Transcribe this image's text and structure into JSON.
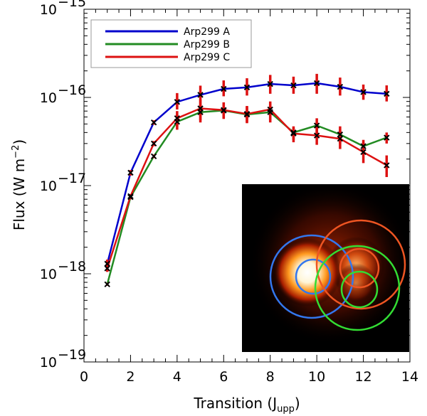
{
  "chart_data": {
    "type": "line",
    "title": "",
    "xlabel": "Transition (J",
    "xlabel_sub": "upp",
    "xlabel_close": ")",
    "ylabel": "Flux (W m",
    "ylabel_sup": "−2",
    "ylabel_close": ")",
    "xlim": [
      0,
      14
    ],
    "ylim": [
      1e-19,
      1e-15
    ],
    "yscale": "log",
    "legend_position": "top-left",
    "x_ticks": [
      0,
      2,
      4,
      6,
      8,
      10,
      12,
      14
    ],
    "y_ticks": [
      {
        "value": 1e-19,
        "base": "10",
        "exp": "−19"
      },
      {
        "value": 1e-18,
        "base": "10",
        "exp": "−18"
      },
      {
        "value": 1e-17,
        "base": "10",
        "exp": "−17"
      },
      {
        "value": 1e-16,
        "base": "10",
        "exp": "−16"
      },
      {
        "value": 1e-15,
        "base": "10",
        "exp": "−15"
      }
    ],
    "x": [
      1,
      2,
      3,
      4,
      5,
      6,
      7,
      8,
      9,
      10,
      11,
      12,
      13
    ],
    "series": [
      {
        "name": "Arp299 A",
        "color": "#0000cc",
        "values": [
          1.3e-18,
          1.4e-17,
          5.2e-17,
          8.9e-17,
          1.07e-16,
          1.25e-16,
          1.3e-16,
          1.42e-16,
          1.37e-16,
          1.45e-16,
          1.32e-16,
          1.15e-16,
          1.1e-16
        ],
        "err_low": [
          1.1e-18,
          1.3e-17,
          4.9e-17,
          7.3e-17,
          8.8e-17,
          1.03e-16,
          1.05e-16,
          1.1e-16,
          1.1e-16,
          1.1e-16,
          1.05e-16,
          9.4e-17,
          9e-17
        ],
        "err_high": [
          1.45e-18,
          1.5e-17,
          5.5e-17,
          1.12e-16,
          1.36e-16,
          1.56e-16,
          1.65e-16,
          1.8e-16,
          1.72e-16,
          1.85e-16,
          1.68e-16,
          1.4e-16,
          1.37e-16
        ]
      },
      {
        "name": "Arp299 B",
        "color": "#228b22",
        "values": [
          7.6e-19,
          7.4e-18,
          2.15e-17,
          5.3e-17,
          6.8e-17,
          7.1e-17,
          6.4e-17,
          6.8e-17,
          4e-17,
          4.8e-17,
          3.8e-17,
          2.8e-17,
          3.5e-17
        ],
        "err_low": [
          7.3e-19,
          7e-18,
          2.05e-17,
          4.3e-17,
          5.2e-17,
          5.7e-17,
          5.1e-17,
          5.2e-17,
          3.3e-17,
          3.8e-17,
          3e-17,
          2.3e-17,
          3e-17
        ],
        "err_high": [
          7.9e-19,
          7.8e-18,
          2.25e-17,
          6.4e-17,
          8.8e-17,
          8.7e-17,
          7.9e-17,
          8.5e-17,
          4.5e-17,
          5.8e-17,
          4.7e-17,
          3.3e-17,
          4e-17
        ]
      },
      {
        "name": "Arp299 C",
        "color": "#dd1111",
        "values": [
          1.15e-18,
          7.6e-18,
          3e-17,
          5.8e-17,
          7.5e-17,
          7.2e-17,
          6.5e-17,
          7.3e-17,
          3.9e-17,
          3.7e-17,
          3.4e-17,
          2.4e-17,
          1.7e-17
        ],
        "err_low": [
          1.05e-18,
          7.2e-18,
          2.8e-17,
          4.7e-17,
          5.5e-17,
          5.8e-17,
          5.2e-17,
          5.5e-17,
          3.1e-17,
          2.9e-17,
          2.6e-17,
          1.8e-17,
          1.25e-17
        ],
        "err_high": [
          1.25e-18,
          8e-18,
          3.2e-17,
          7e-17,
          9.5e-17,
          8.8e-17,
          8e-17,
          9e-17,
          4.7e-17,
          4.7e-17,
          4.3e-17,
          3.1e-17,
          2.2e-17
        ]
      }
    ],
    "errorbar_color": "#dd1111",
    "marker_color": "#000000",
    "inset": {
      "description_colors": {
        "background": "#000000",
        "emission_core": "#ffffff",
        "emission_mid": "#ff9a20",
        "emission_outer": "#8a1a00",
        "circle_A": "#3377ee",
        "circle_B": "#33dd33",
        "circle_C": "#ee5522"
      }
    }
  }
}
